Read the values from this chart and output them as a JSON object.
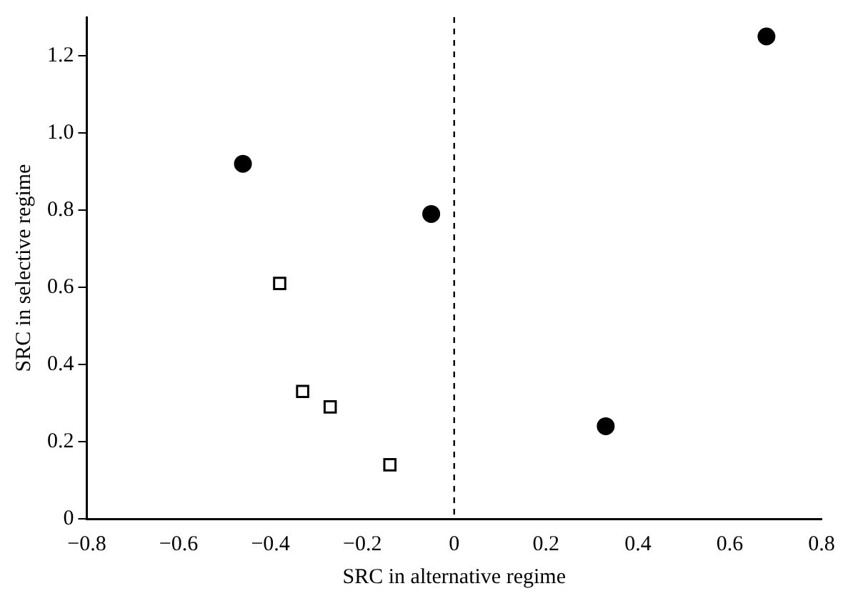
{
  "chart_data": {
    "type": "scatter",
    "xlabel": "SRC in alternative regime",
    "ylabel": "SRC in selective regime",
    "series": [
      {
        "color": "#000000",
        "marker": "circle",
        "x": [
          -0.46,
          -0.05,
          0.68,
          0.33
        ],
        "values": [
          0.92,
          0.79,
          1.25,
          0.24
        ]
      },
      {
        "color": "#000000",
        "marker": "square",
        "x": [
          -0.38,
          -0.33,
          -0.27,
          -0.14
        ],
        "values": [
          0.61,
          0.33,
          0.29,
          0.14
        ]
      }
    ],
    "xlim": [
      -0.8,
      0.8
    ],
    "xticks": [
      {
        "value": -0.8,
        "label": "−0.8"
      },
      {
        "value": -0.6,
        "label": "−0.6"
      },
      {
        "value": -0.4,
        "label": "−0.4"
      },
      {
        "value": -0.2,
        "label": "−0.2"
      },
      0,
      0.2,
      0.4,
      0.6,
      0.8
    ],
    "ylim": [
      0,
      1.3
    ],
    "yticks": [
      0,
      {
        "value": 0.2,
        "label": "0.2"
      },
      {
        "value": 0.4,
        "label": "0.4"
      },
      {
        "value": 0.6,
        "label": "0.6"
      },
      {
        "value": 0.8,
        "label": "0.8"
      },
      {
        "value": 1,
        "label": "1.0"
      },
      {
        "value": 1.2,
        "label": "1.2"
      }
    ],
    "ref_lines": [
      {
        "axis": "x",
        "value": 0,
        "line_style": "dashed",
        "color": "#000000"
      }
    ],
    "grid": false,
    "legend": false
  }
}
